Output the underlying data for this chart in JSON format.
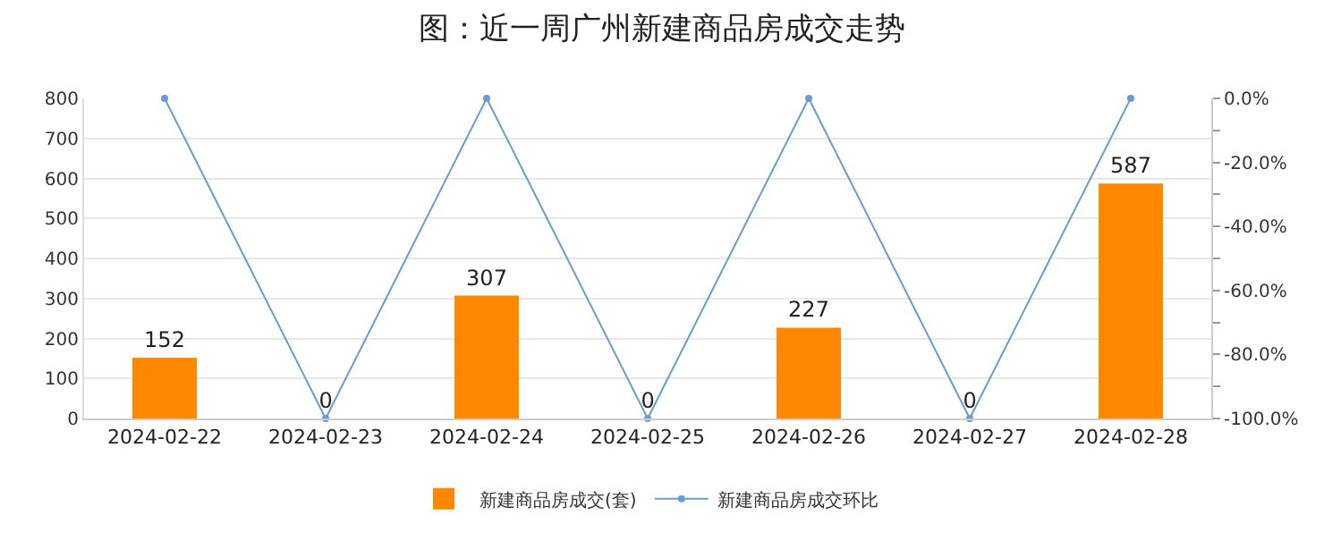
{
  "chart_data": {
    "type": "bar",
    "title": "图：近一周广州新建商品房成交走势",
    "categories": [
      "2024-02-22",
      "2024-02-23",
      "2024-02-24",
      "2024-02-25",
      "2024-02-26",
      "2024-02-27",
      "2024-02-28"
    ],
    "series": [
      {
        "name": "新建商品房成交(套)",
        "color": "#ff8800",
        "values": [
          152,
          0,
          307,
          0,
          227,
          0,
          587
        ],
        "value_labels": [
          "152",
          "0",
          "307",
          "0",
          "227",
          "0",
          "587"
        ]
      },
      {
        "name": "新建商品房成交环比",
        "type": "line",
        "axis": "y2",
        "color": "#6a9bd1",
        "marker": "circle",
        "values": [
          0,
          -100,
          0,
          -100,
          0,
          -100,
          0
        ]
      }
    ],
    "ylim": [
      0,
      800
    ],
    "yticks": [
      0,
      100,
      200,
      300,
      400,
      500,
      600,
      700,
      800
    ],
    "y2lim": [
      -100,
      0
    ],
    "y2ticks": [
      {
        "value": -100,
        "label": "-100.0%"
      },
      {
        "value": -90,
        "label": null
      },
      {
        "value": -80,
        "label": "-80.0%"
      },
      {
        "value": -70,
        "label": null
      },
      {
        "value": -60,
        "label": "-60.0%"
      },
      {
        "value": -50,
        "label": null
      },
      {
        "value": -40,
        "label": "-40.0%"
      },
      {
        "value": -30,
        "label": null
      },
      {
        "value": -20,
        "label": "-20.0%"
      },
      {
        "value": -10,
        "label": null
      },
      {
        "value": 0,
        "label": "0.0%"
      }
    ],
    "grid": "y",
    "legend": "bottom"
  }
}
